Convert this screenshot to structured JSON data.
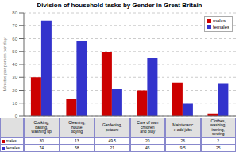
{
  "chart_data": {
    "type": "bar",
    "title": "Division of household tasks by Gender in Great Britain",
    "ylabel": "Minutes per person per day",
    "categories": [
      "Cooking,\nbaking,\nwashing up",
      "Cleaning,\nhouse\ntidying",
      "Gardening,\npetcare",
      "Care of own\nchildren\nand play",
      "Maintenanc\ne odd jobs",
      "Clothes,\nwashing,\nironing,\nsewing"
    ],
    "series": [
      {
        "name": "males",
        "color": "#cc0000",
        "values": [
          30,
          13,
          49.5,
          20,
          26,
          2
        ]
      },
      {
        "name": "females",
        "color": "#3333cc",
        "values": [
          74,
          58,
          21,
          45,
          9.5,
          25
        ]
      }
    ],
    "ylim": [
      0,
      80
    ],
    "yticks": [
      0,
      10,
      20,
      30,
      40,
      50,
      60,
      70,
      80
    ],
    "grid": true,
    "legend": "upper right",
    "tick_labels": "y"
  }
}
